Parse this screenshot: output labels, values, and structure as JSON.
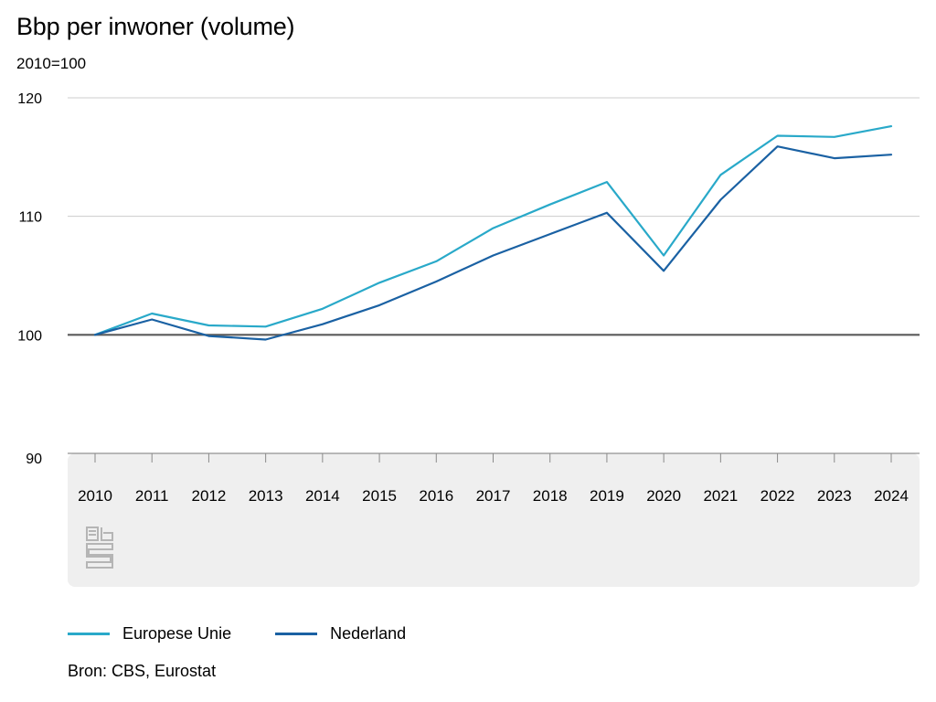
{
  "chart_data": {
    "type": "line",
    "title": "Bbp per inwoner (volume)",
    "subtitle": "2010=100",
    "x": [
      "2010",
      "2011",
      "2012",
      "2013",
      "2014",
      "2015",
      "2016",
      "2017",
      "2018",
      "2019",
      "2020",
      "2021",
      "2022",
      "2023",
      "2024"
    ],
    "series": [
      {
        "name": "Europese Unie",
        "color": "#29a9c9",
        "values": [
          100.0,
          101.8,
          100.8,
          100.7,
          102.2,
          104.4,
          106.2,
          109.0,
          111.0,
          112.9,
          106.7,
          113.5,
          116.8,
          116.7,
          117.6
        ]
      },
      {
        "name": "Nederland",
        "color": "#1a61a3",
        "values": [
          100.0,
          101.3,
          99.9,
          99.6,
          100.9,
          102.5,
          104.5,
          106.7,
          108.5,
          110.3,
          105.4,
          111.4,
          115.9,
          114.9,
          115.2
        ]
      }
    ],
    "yticks": [
      90,
      100,
      110,
      120
    ],
    "ylim": [
      90,
      120
    ],
    "baseline": 100,
    "grid": true,
    "legend_position": "bottom-left",
    "source": "Bron: CBS, Eurostat",
    "logo": "cbs-logo"
  }
}
